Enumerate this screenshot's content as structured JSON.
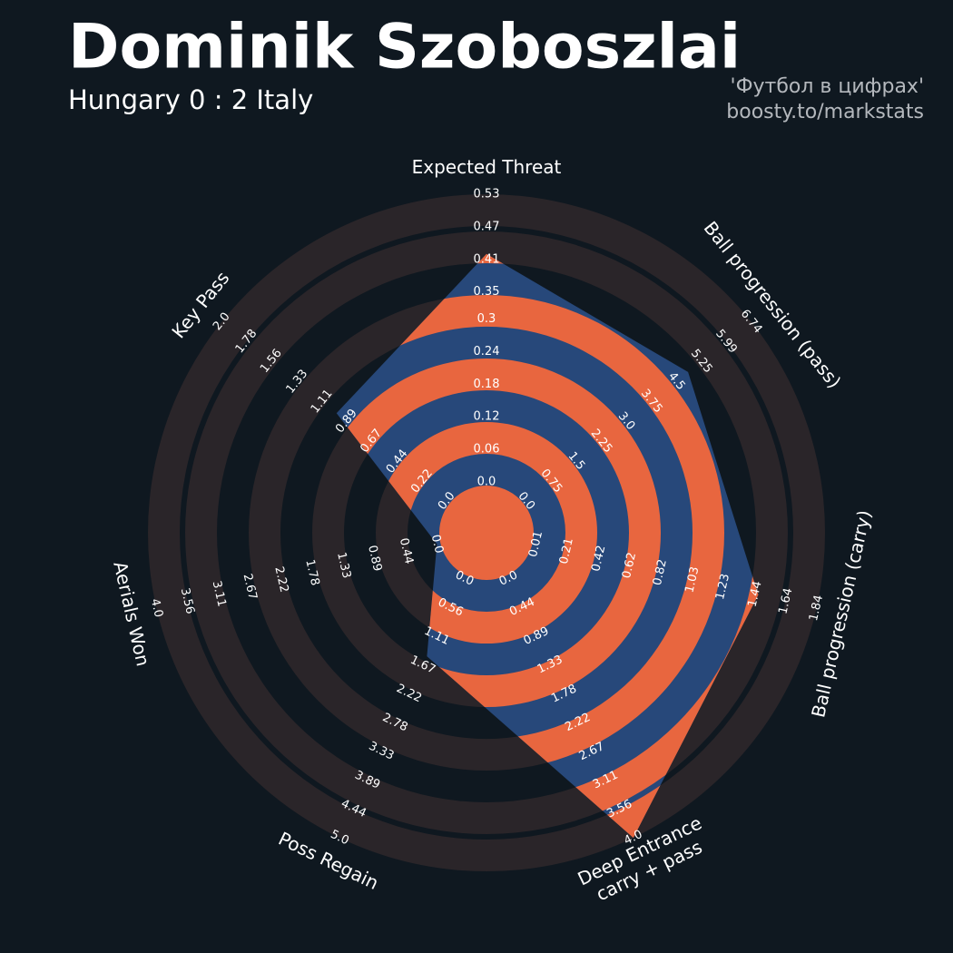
{
  "chart_data": {
    "type": "radar",
    "title": "Dominik Szoboszlai",
    "subtitle": "Hungary 0 : 2 Italy",
    "credits": [
      "'Футбол в цифрах'",
      "boosty.to/markstats"
    ],
    "categories": [
      [
        "Expected Threat"
      ],
      [
        "Ball progression (pass)"
      ],
      [
        "Ball progression (carry)"
      ],
      [
        "Deep Entrance",
        "carry + pass"
      ],
      [
        "Poss Regain"
      ],
      [
        "Aerials Won"
      ],
      [
        "Key Pass"
      ]
    ],
    "values": [
      0.42,
      4.85,
      1.46,
      4.0,
      1.5,
      0,
      0.98
    ],
    "color": "#27487a",
    "ring_color": "#2a2529",
    "highlight_color": "#e8663f",
    "axes_ticks": [
      [
        {
          "value": 0,
          "label": "0.0"
        },
        0.06,
        0.12,
        0.18,
        0.24,
        0.3,
        0.35,
        0.41,
        0.47,
        0.53
      ],
      [
        {
          "value": 0,
          "label": "0.0"
        },
        0.75,
        1.5,
        2.25,
        {
          "value": 3,
          "label": "3.0"
        },
        3.75,
        4.5,
        5.25,
        5.99,
        6.74
      ],
      [
        0.01,
        0.21,
        0.42,
        0.62,
        0.82,
        1.03,
        1.23,
        1.44,
        1.64,
        1.84
      ],
      [
        {
          "value": 0,
          "label": "0.0"
        },
        0.44,
        0.89,
        1.33,
        1.78,
        2.22,
        2.67,
        3.11,
        3.56,
        {
          "value": 4,
          "label": "4.0"
        }
      ],
      [
        {
          "value": 0,
          "label": "0.0"
        },
        0.56,
        1.11,
        1.67,
        2.22,
        2.78,
        3.33,
        3.89,
        4.44,
        {
          "value": 5,
          "label": "5.0"
        }
      ],
      [
        {
          "value": 0,
          "label": "0.0"
        },
        0.44,
        0.89,
        1.33,
        1.78,
        2.22,
        2.67,
        3.11,
        3.56,
        {
          "value": 4,
          "label": "4.0"
        }
      ],
      [
        {
          "value": 0,
          "label": "0.0"
        },
        0.22,
        0.44,
        0.67,
        0.89,
        1.11,
        1.33,
        1.56,
        1.78,
        {
          "value": 2,
          "label": "2.0"
        }
      ]
    ]
  }
}
